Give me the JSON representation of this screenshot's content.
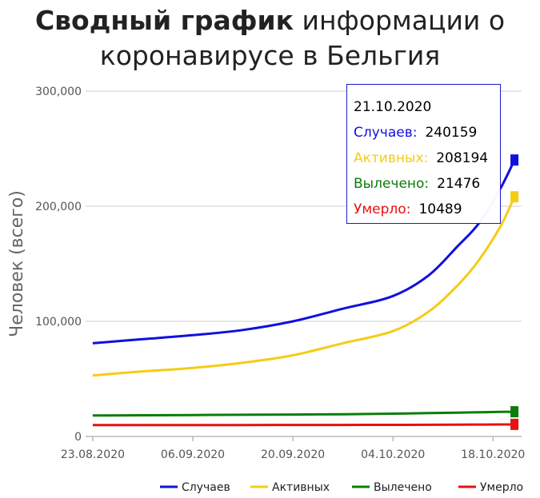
{
  "title": {
    "bold": "Сводный график",
    "rest_line1": "информации о",
    "line2": "коронавирусе в Бельгия"
  },
  "tooltip": {
    "date": "21.10.2020",
    "rows": [
      {
        "label": "Случаев:",
        "value": "240159",
        "color": "#1010dd"
      },
      {
        "label": "Активных:",
        "value": "208194",
        "color": "#f5cc15"
      },
      {
        "label": "Вылечено:",
        "value": "21476",
        "color": "#0a7d0a"
      },
      {
        "label": "Умерло:",
        "value": "10489",
        "color": "#e81010"
      }
    ]
  },
  "chart_data": {
    "type": "line",
    "title": "Сводный график информации о коронавирусе в Бельгия",
    "ylabel": "Человек (всего)",
    "xlabel": "",
    "x_tick_labels": [
      "23.08.2020",
      "06.09.2020",
      "20.09.2020",
      "04.10.2020",
      "18.10.2020"
    ],
    "y_tick_labels": [
      "0",
      "100,000",
      "200,000",
      "300,000"
    ],
    "ylim": [
      0,
      300000
    ],
    "xlim": [
      "22.08.2020",
      "22.10.2020"
    ],
    "grid": true,
    "legend_position": "bottom",
    "x": [
      "23.08.2020",
      "30.08.2020",
      "06.09.2020",
      "13.09.2020",
      "20.09.2020",
      "27.09.2020",
      "04.10.2020",
      "09.10.2020",
      "13.10.2020",
      "16.10.2020",
      "19.10.2020",
      "21.10.2020"
    ],
    "series": [
      {
        "name": "Случаев",
        "color": "#1010dd",
        "values": [
          81000,
          84500,
          88000,
          92500,
          100000,
          111000,
          122000,
          140000,
          165000,
          185000,
          215000,
          240159
        ]
      },
      {
        "name": "Активных",
        "color": "#f5cc15",
        "values": [
          53000,
          56500,
          59500,
          64000,
          70500,
          81000,
          91500,
          108500,
          131000,
          153000,
          182000,
          208194
        ]
      },
      {
        "name": "Вылечено",
        "color": "#0a7d0a",
        "values": [
          18200,
          18400,
          18600,
          18800,
          19000,
          19300,
          19800,
          20300,
          20700,
          21000,
          21300,
          21476
        ]
      },
      {
        "name": "Умерло",
        "color": "#e81010",
        "values": [
          9850,
          9880,
          9910,
          9950,
          9980,
          10020,
          10090,
          10170,
          10260,
          10340,
          10420,
          10489
        ]
      }
    ]
  }
}
